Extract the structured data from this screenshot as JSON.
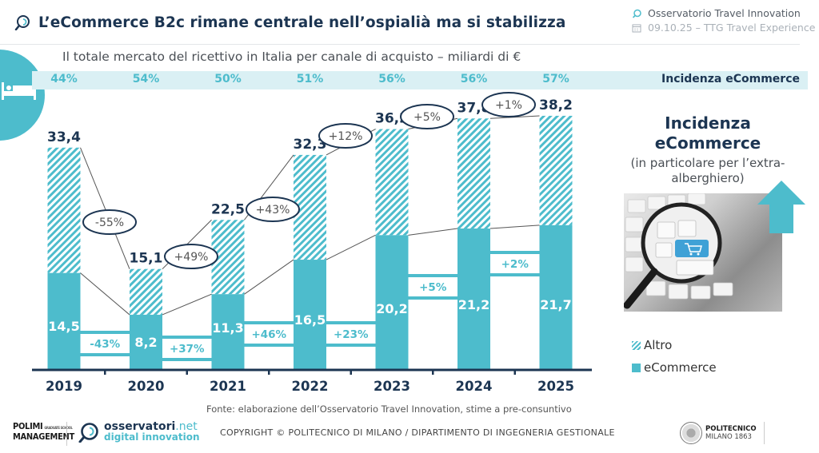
{
  "header": {
    "title": "L’eCommerce B2c rimane centrale nell’ospialià ma si stabilizza",
    "organization": "Osservatorio Travel Innovation",
    "event": "09.10.25 – TTG Travel Experience"
  },
  "side_panel": {
    "title": "Incidenza eCommerce",
    "subtitle": "(in particolare per l’extra-alberghiero)",
    "arrow": "arrow-up-icon",
    "image": "magnifying-glass-keyboard-cart-photo"
  },
  "legend": {
    "items": [
      {
        "label": "Altro",
        "style": "hatched"
      },
      {
        "label": "eCommerce",
        "style": "solid"
      }
    ]
  },
  "footer": {
    "source": "Fonte: elaborazione dell’Osservatorio Travel Innovation, stime a pre-consuntivo",
    "copyright": "COPYRIGHT © POLITECNICO DI MILANO / DIPARTIMENTO DI INGEGNERIA GESTIONALE",
    "polimi_logo_line1": "POLIMI",
    "polimi_logo_line2": "MANAGEMENT",
    "polimi_logo_small": "GRADUATE SCHOOL",
    "oss_logo_name": "osservatori",
    "oss_logo_tld": ".net",
    "oss_logo_tagline": "digital innovation",
    "poli_logo_line1": "POLITECNICO",
    "poli_logo_line2": "MILANO 1863"
  },
  "colors": {
    "accent": "#4dbccc",
    "dark": "#1c3552",
    "band": "#daf0f4"
  },
  "chart_data": {
    "type": "bar",
    "stacked": true,
    "title": "Il totale mercato del ricettivo in Italia per canale di acquisto – miliardi di €",
    "xlabel": "",
    "ylabel": "",
    "unit": "miliardi di €",
    "categories": [
      "2019",
      "2020",
      "2021",
      "2022",
      "2023",
      "2024",
      "2025"
    ],
    "series": [
      {
        "name": "eCommerce",
        "style": "solid",
        "values": [
          14.5,
          8.2,
          11.3,
          16.5,
          20.2,
          21.2,
          21.7
        ],
        "labels": [
          "14,5",
          "8,2",
          "11,3",
          "16,5",
          "20,2",
          "21,2",
          "21,7"
        ]
      },
      {
        "name": "Altro",
        "style": "hatched",
        "values": [
          18.9,
          6.9,
          11.2,
          15.8,
          16.0,
          16.6,
          16.5
        ]
      }
    ],
    "totals": [
      33.4,
      15.1,
      22.5,
      32.3,
      36.2,
      37.8,
      38.2
    ],
    "total_labels": [
      "33,4",
      "15,1",
      "22,5",
      "32,3",
      "36,2",
      "37,8",
      "38,2"
    ],
    "total_growth": [
      "-55%",
      "+49%",
      "+43%",
      "+12%",
      "+5%",
      "+1%"
    ],
    "ecommerce_growth": [
      "-43%",
      "+37%",
      "+46%",
      "+23%",
      "+5%",
      "+2%"
    ],
    "incidenza_ecommerce_label": "Incidenza eCommerce",
    "incidenza_ecommerce": [
      "44%",
      "54%",
      "50%",
      "51%",
      "56%",
      "56%",
      "57%"
    ],
    "ylim": [
      0,
      40
    ],
    "grid": false,
    "legend_position": "right"
  }
}
